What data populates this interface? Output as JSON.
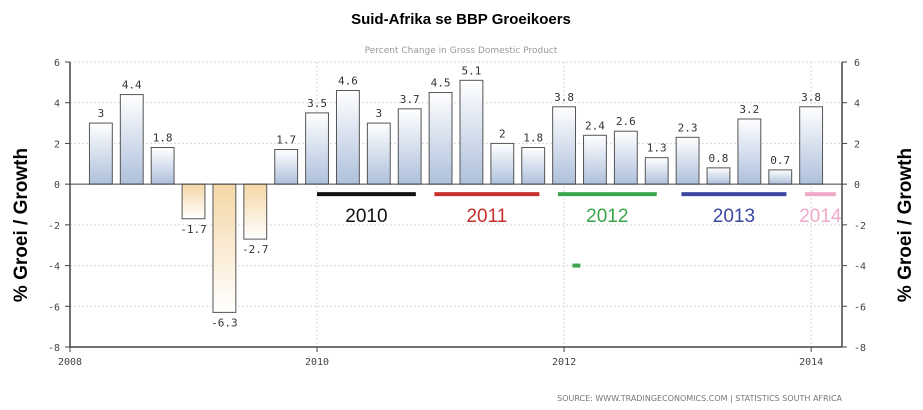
{
  "chart_data": {
    "type": "bar",
    "title": "Suid-Afrika se BBP Groeikoers",
    "subtitle": "Percent Change in Gross Domestic Product",
    "ylabel": "% Groei / Growth",
    "source": "SOURCE:  WWW.TRADINGECONOMICS.COM  |  STATISTICS SOUTH AFRICA",
    "ylim": [
      -8,
      6
    ],
    "yticks": [
      -8,
      -6,
      -4,
      -2,
      0,
      2,
      4,
      6
    ],
    "xlim": [
      2008,
      2014.25
    ],
    "xticks": [
      2008,
      2010,
      2012,
      2014
    ],
    "grid": true,
    "colors": {
      "positive_top": "#ffffff",
      "positive_bottom": "#aec0dc",
      "negative_top": "#f5d7a6",
      "negative_bottom": "#ffffff",
      "bar_stroke": "#555555"
    },
    "x": [
      2008.25,
      2008.5,
      2008.75,
      2009.0,
      2009.25,
      2009.5,
      2009.75,
      2010.0,
      2010.25,
      2010.5,
      2010.75,
      2011.0,
      2011.25,
      2011.5,
      2011.75,
      2012.0,
      2012.25,
      2012.5,
      2012.75,
      2013.0,
      2013.25,
      2013.5,
      2013.75,
      2014.0
    ],
    "values": [
      3,
      4.4,
      1.8,
      -1.7,
      -6.3,
      -2.7,
      1.7,
      3.5,
      4.6,
      3,
      3.7,
      4.5,
      5.1,
      2,
      1.8,
      3.8,
      2.4,
      2.6,
      1.3,
      2.3,
      0.8,
      3.2,
      0.7,
      3.8
    ],
    "labels": [
      "3",
      "4.4",
      "1.8",
      "-1.7",
      "-6.3",
      "-2.7",
      "1.7",
      "3.5",
      "4.6",
      "3",
      "3.7",
      "4.5",
      "5.1",
      "2",
      "1.8",
      "3.8",
      "2.4",
      "2.6",
      "1.3",
      "2.3",
      "0.8",
      "3.2",
      "0.7",
      "3.8"
    ],
    "year_annotations": [
      {
        "label": "2010",
        "color": "#111111",
        "x_start": 2010.0,
        "x_end": 2010.8
      },
      {
        "label": "2011",
        "color": "#c8302e",
        "x_start": 2010.95,
        "x_end": 2011.8
      },
      {
        "label": "2012",
        "color": "#3aa54a",
        "x_start": 2011.95,
        "x_end": 2012.75
      },
      {
        "label": "2013",
        "color": "#3c48a0",
        "x_start": 2012.95,
        "x_end": 2013.8
      },
      {
        "label": "2014",
        "color": "#f0a8c8",
        "x_start": 2013.95,
        "x_end": 2014.2
      }
    ],
    "stray_mark": {
      "x": 2012.1,
      "y": -4,
      "color": "#3aa54a"
    }
  }
}
